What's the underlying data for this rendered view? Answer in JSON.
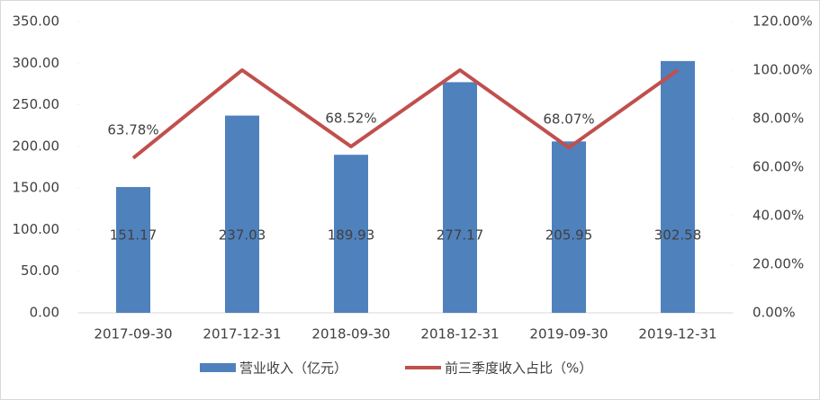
{
  "chart_data": {
    "type": "bar",
    "categories": [
      "2017-09-30",
      "2017-12-31",
      "2018-09-30",
      "2018-12-31",
      "2019-09-30",
      "2019-12-31"
    ],
    "series": [
      {
        "name": "营业收入（亿元）",
        "type": "bar",
        "color": "#4f81bd",
        "values": [
          151.17,
          237.03,
          189.93,
          277.17,
          205.95,
          302.58
        ]
      },
      {
        "name": "前三季度收入占比（%）",
        "type": "line",
        "axis": "y2",
        "color": "#c0504d",
        "values": [
          63.78,
          100,
          68.52,
          100,
          68.07,
          100
        ],
        "value_labels": [
          "63.78%",
          null,
          "68.52%",
          null,
          "68.07%",
          null
        ]
      }
    ],
    "ylim": [
      0,
      350
    ],
    "yticks": [
      {
        "value": 0,
        "label": "0.00"
      },
      {
        "value": 50,
        "label": "50.00"
      },
      {
        "value": 100,
        "label": "100.00"
      },
      {
        "value": 150,
        "label": "150.00"
      },
      {
        "value": 200,
        "label": "200.00"
      },
      {
        "value": 250,
        "label": "250.00"
      },
      {
        "value": 300,
        "label": "300.00"
      },
      {
        "value": 350,
        "label": "350.00"
      }
    ],
    "y2lim": [
      0,
      120
    ],
    "y2ticks": [
      {
        "value": 0,
        "label": "0.00%"
      },
      {
        "value": 20,
        "label": "20.00%"
      },
      {
        "value": 40,
        "label": "40.00%"
      },
      {
        "value": 60,
        "label": "60.00%"
      },
      {
        "value": 80,
        "label": "80.00%"
      },
      {
        "value": 100,
        "label": "100.00%"
      },
      {
        "value": 120,
        "label": "120.00%"
      }
    ],
    "legend": "bottom"
  }
}
